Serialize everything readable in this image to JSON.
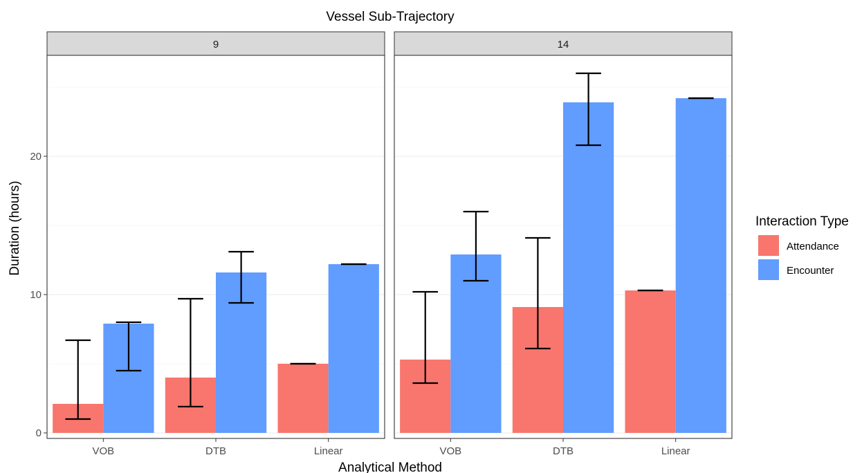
{
  "chart_data": {
    "type": "bar",
    "title": "Vessel Sub-Trajectory",
    "xlabel": "Analytical Method",
    "ylabel": "Duration (hours)",
    "ylim": [
      -0.4,
      27.3
    ],
    "yticks": [
      0,
      10,
      20
    ],
    "grid": true,
    "categories": [
      "VOB",
      "DTB",
      "Linear"
    ],
    "legend": {
      "title": "Interaction Type",
      "placement": "right"
    },
    "series": [
      {
        "name": "Attendance",
        "color": "#F8766D"
      },
      {
        "name": "Encounter",
        "color": "#619CFF"
      }
    ],
    "panels": [
      {
        "label": "9",
        "groups": [
          {
            "category": "VOB",
            "bars": [
              {
                "series": "Attendance",
                "value": 2.1,
                "err": [
                  1.0,
                  6.7
                ]
              },
              {
                "series": "Encounter",
                "value": 7.9,
                "err": [
                  4.5,
                  8.0
                ]
              }
            ]
          },
          {
            "category": "DTB",
            "bars": [
              {
                "series": "Attendance",
                "value": 4.0,
                "err": [
                  1.9,
                  9.7
                ]
              },
              {
                "series": "Encounter",
                "value": 11.6,
                "err": [
                  9.4,
                  13.1
                ]
              }
            ]
          },
          {
            "category": "Linear",
            "bars": [
              {
                "series": "Attendance",
                "value": 5.0,
                "err": [
                  5.0,
                  5.0
                ]
              },
              {
                "series": "Encounter",
                "value": 12.2,
                "err": [
                  12.2,
                  12.2
                ]
              }
            ]
          }
        ]
      },
      {
        "label": "14",
        "groups": [
          {
            "category": "VOB",
            "bars": [
              {
                "series": "Attendance",
                "value": 5.3,
                "err": [
                  3.6,
                  10.2
                ]
              },
              {
                "series": "Encounter",
                "value": 12.9,
                "err": [
                  11.0,
                  16.0
                ]
              }
            ]
          },
          {
            "category": "DTB",
            "bars": [
              {
                "series": "Attendance",
                "value": 9.1,
                "err": [
                  6.1,
                  14.1
                ]
              },
              {
                "series": "Encounter",
                "value": 23.9,
                "err": [
                  20.8,
                  26.0
                ]
              }
            ]
          },
          {
            "category": "Linear",
            "bars": [
              {
                "series": "Attendance",
                "value": 10.3,
                "err": [
                  10.3,
                  10.3
                ]
              },
              {
                "series": "Encounter",
                "value": 24.2,
                "err": [
                  24.2,
                  24.2
                ]
              }
            ]
          }
        ]
      }
    ]
  }
}
